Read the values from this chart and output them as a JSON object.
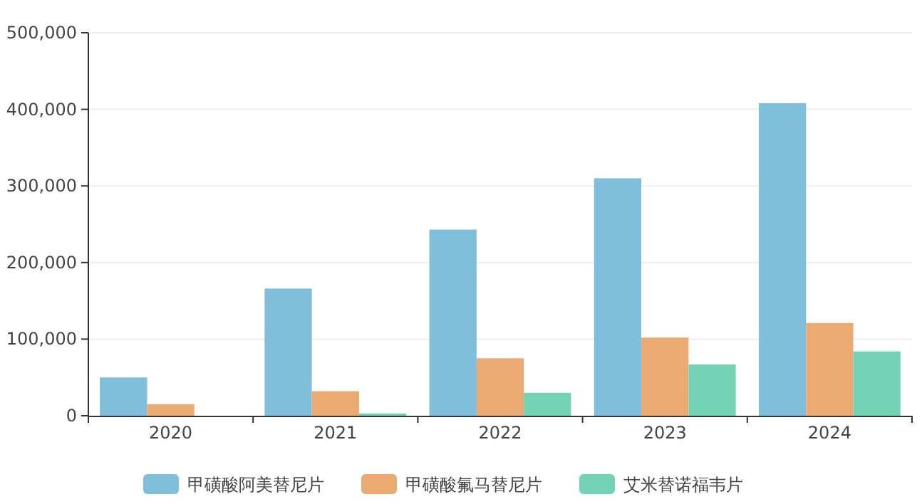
{
  "chart_data": {
    "type": "bar",
    "categories": [
      "2020",
      "2021",
      "2022",
      "2023",
      "2024"
    ],
    "series": [
      {
        "name": "甲磺酸阿美替尼片",
        "color": "#7fbfdb",
        "values": [
          50000,
          166000,
          243000,
          310000,
          408000
        ]
      },
      {
        "name": "甲磺酸氟马替尼片",
        "color": "#ecaa73",
        "values": [
          15000,
          32000,
          75000,
          102000,
          121000
        ]
      },
      {
        "name": "艾米替诺福韦片",
        "color": "#74d3b4",
        "values": [
          0,
          3000,
          30000,
          67000,
          84000
        ]
      }
    ],
    "ylim": [
      0,
      500000
    ],
    "yticks": [
      {
        "value": 0,
        "label": "0"
      },
      {
        "value": 100000,
        "label": "100,000"
      },
      {
        "value": 200000,
        "label": "200,000"
      },
      {
        "value": 300000,
        "label": "300,000"
      },
      {
        "value": 400000,
        "label": "400,000"
      },
      {
        "value": 500000,
        "label": "500,000"
      }
    ],
    "grid": "y",
    "legend": "bottom"
  }
}
